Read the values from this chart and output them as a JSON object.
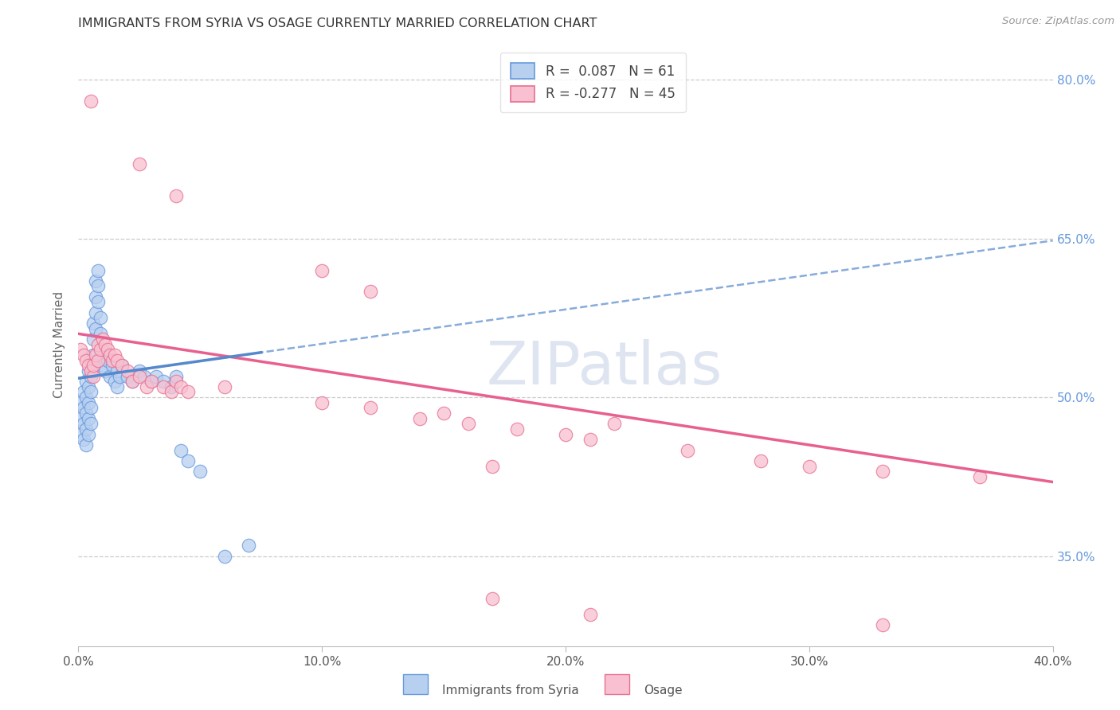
{
  "title": "IMMIGRANTS FROM SYRIA VS OSAGE CURRENTLY MARRIED CORRELATION CHART",
  "source": "Source: ZipAtlas.com",
  "xlabel_blue": "Immigrants from Syria",
  "xlabel_pink": "Osage",
  "ylabel": "Currently Married",
  "x_min": 0.0,
  "x_max": 0.4,
  "y_min": 0.265,
  "y_max": 0.835,
  "y_ticks": [
    0.35,
    0.5,
    0.65,
    0.8
  ],
  "x_ticks": [
    0.0,
    0.1,
    0.2,
    0.3,
    0.4
  ],
  "R_blue": 0.087,
  "N_blue": 61,
  "R_pink": -0.277,
  "N_pink": 45,
  "blue_fill": "#b8d0f0",
  "blue_edge": "#6699dd",
  "pink_fill": "#f8c0d0",
  "pink_edge": "#e87090",
  "blue_line": "#5588cc",
  "pink_line": "#e86090",
  "background": "#ffffff",
  "watermark_text": "ZIPatlas",
  "watermark_color": "#c8d5e8",
  "blue_label": "Immigrants from Syria",
  "pink_label": "Osage",
  "blue_x": [
    0.001,
    0.001,
    0.001,
    0.002,
    0.002,
    0.002,
    0.002,
    0.003,
    0.003,
    0.003,
    0.003,
    0.003,
    0.004,
    0.004,
    0.004,
    0.004,
    0.004,
    0.005,
    0.005,
    0.005,
    0.005,
    0.005,
    0.006,
    0.006,
    0.006,
    0.006,
    0.007,
    0.007,
    0.007,
    0.007,
    0.008,
    0.008,
    0.008,
    0.009,
    0.009,
    0.01,
    0.01,
    0.011,
    0.011,
    0.012,
    0.013,
    0.014,
    0.015,
    0.016,
    0.016,
    0.017,
    0.018,
    0.02,
    0.022,
    0.025,
    0.027,
    0.03,
    0.032,
    0.035,
    0.038,
    0.04,
    0.042,
    0.045,
    0.05,
    0.06,
    0.07
  ],
  "blue_y": [
    0.495,
    0.48,
    0.465,
    0.505,
    0.49,
    0.475,
    0.46,
    0.515,
    0.5,
    0.485,
    0.47,
    0.455,
    0.525,
    0.51,
    0.495,
    0.48,
    0.465,
    0.535,
    0.52,
    0.505,
    0.49,
    0.475,
    0.57,
    0.555,
    0.54,
    0.525,
    0.61,
    0.595,
    0.58,
    0.565,
    0.62,
    0.605,
    0.59,
    0.575,
    0.56,
    0.545,
    0.53,
    0.54,
    0.525,
    0.535,
    0.52,
    0.53,
    0.515,
    0.525,
    0.51,
    0.52,
    0.53,
    0.52,
    0.515,
    0.525,
    0.52,
    0.515,
    0.52,
    0.515,
    0.51,
    0.52,
    0.45,
    0.44,
    0.43,
    0.35,
    0.36
  ],
  "pink_x": [
    0.001,
    0.002,
    0.003,
    0.004,
    0.005,
    0.006,
    0.006,
    0.007,
    0.008,
    0.008,
    0.009,
    0.01,
    0.011,
    0.012,
    0.013,
    0.014,
    0.015,
    0.016,
    0.018,
    0.02,
    0.022,
    0.025,
    0.028,
    0.03,
    0.035,
    0.038,
    0.04,
    0.042,
    0.045,
    0.06,
    0.1,
    0.12,
    0.14,
    0.15,
    0.16,
    0.17,
    0.18,
    0.2,
    0.21,
    0.22,
    0.25,
    0.28,
    0.3,
    0.33,
    0.37
  ],
  "pink_y": [
    0.545,
    0.54,
    0.535,
    0.53,
    0.525,
    0.52,
    0.53,
    0.54,
    0.535,
    0.55,
    0.545,
    0.555,
    0.55,
    0.545,
    0.54,
    0.535,
    0.54,
    0.535,
    0.53,
    0.525,
    0.515,
    0.52,
    0.51,
    0.515,
    0.51,
    0.505,
    0.515,
    0.51,
    0.505,
    0.51,
    0.495,
    0.49,
    0.48,
    0.485,
    0.475,
    0.435,
    0.47,
    0.465,
    0.46,
    0.475,
    0.45,
    0.44,
    0.435,
    0.43,
    0.425
  ],
  "pink_outliers_x": [
    0.005,
    0.025,
    0.04,
    0.1,
    0.12,
    0.17,
    0.21,
    0.33
  ],
  "pink_outliers_y": [
    0.78,
    0.72,
    0.69,
    0.62,
    0.6,
    0.31,
    0.295,
    0.285
  ]
}
